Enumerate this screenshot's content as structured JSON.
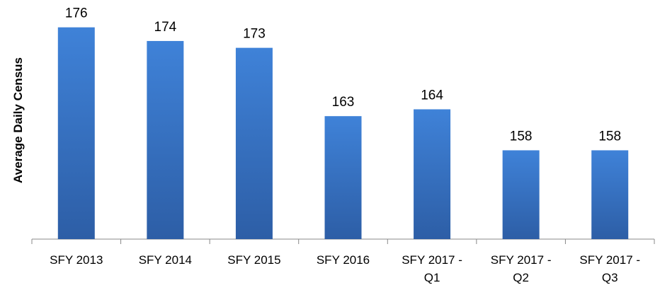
{
  "chart_data": {
    "type": "bar",
    "y_label": "Average Daily Census",
    "categories": [
      "SFY 2013",
      "SFY 2014",
      "SFY 2015",
      "SFY 2016",
      "SFY 2017 - Q1",
      "SFY 2017 - Q2",
      "SFY 2017 - Q3"
    ],
    "values": [
      176,
      174,
      173,
      163,
      164,
      158,
      158
    ],
    "color": "#3a78cc",
    "ylim": [
      145,
      180
    ]
  }
}
